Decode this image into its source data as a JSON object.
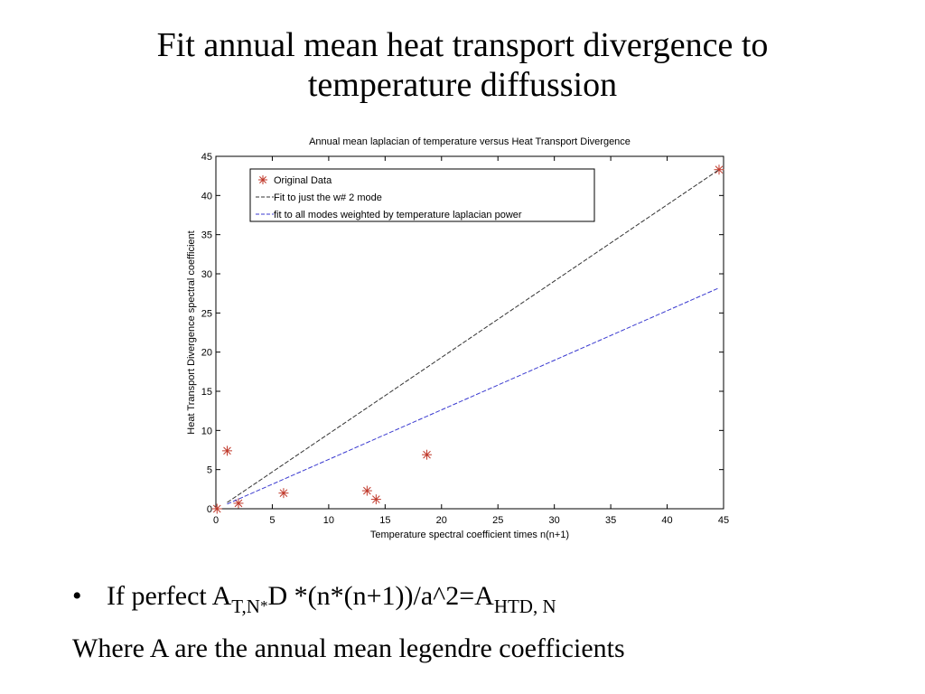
{
  "slide": {
    "title_line1": "Fit annual mean heat transport divergence to",
    "title_line2": "temperature diffussion",
    "bullet": {
      "marker": "•",
      "prefix": "If perfect A",
      "sub1": "T,N",
      "sub1_star": "*",
      "middle": "D *(n*(n+1))/a^2=A",
      "sub2": "HTD, N"
    },
    "note": "Where A are the annual mean legendre coefficients"
  },
  "chart_data": {
    "type": "scatter",
    "title": "Annual mean laplacian of temperature versus Heat Transport Divergence",
    "xlabel": "Temperature spectral coefficient times n(n+1)",
    "ylabel": "Heat Transport Divergence spectral coefficient",
    "xlim": [
      0,
      45
    ],
    "ylim": [
      0,
      45
    ],
    "xticks": [
      0,
      5,
      10,
      15,
      20,
      25,
      30,
      35,
      40,
      45
    ],
    "yticks": [
      0,
      5,
      10,
      15,
      20,
      25,
      30,
      35,
      40,
      45
    ],
    "grid": false,
    "legend_position": "top-left",
    "series": [
      {
        "name": "Original Data",
        "kind": "scatter",
        "marker": "asterisk",
        "color": "#c0392b",
        "x": [
          0.1,
          1.0,
          2.0,
          6.0,
          13.4,
          14.2,
          18.7,
          44.6
        ],
        "y": [
          0.0,
          7.4,
          0.7,
          2.0,
          2.3,
          1.2,
          6.9,
          43.3
        ]
      },
      {
        "name": "Fit to just the w# 2 mode",
        "kind": "line",
        "style": "dashed",
        "color": "#333333",
        "x": [
          1.0,
          44.6
        ],
        "y": [
          0.8,
          43.3
        ]
      },
      {
        "name": "fit to all modes weighted by temperature laplacian power",
        "kind": "line",
        "style": "dashed",
        "color": "#3a3ad0",
        "x": [
          1.0,
          44.6
        ],
        "y": [
          0.6,
          28.2
        ]
      }
    ]
  }
}
